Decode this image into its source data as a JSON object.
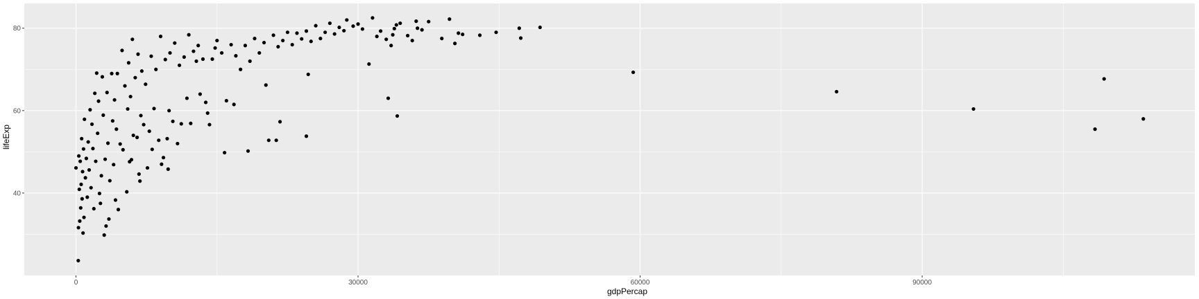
{
  "chart_data": {
    "type": "scatter",
    "xlabel": "gdpPercap",
    "ylabel": "lifeExp",
    "xlim": [
      -5500,
      119000
    ],
    "ylim": [
      20,
      86
    ],
    "x_ticks": [
      0,
      30000,
      60000,
      90000
    ],
    "x_tick_labels": [
      "0",
      "30000",
      "60000",
      "90000"
    ],
    "y_ticks": [
      40,
      60,
      80
    ],
    "y_tick_labels": [
      "40",
      "60",
      "80"
    ],
    "grid": true,
    "panel_background": "#ebebeb",
    "gridline_color": "#ffffff",
    "point_color": "#000000",
    "points": [
      [
        113523,
        58.0
      ],
      [
        109348,
        67.7
      ],
      [
        108382,
        55.5
      ],
      [
        95458,
        60.4
      ],
      [
        80895,
        64.6
      ],
      [
        59265,
        69.3
      ],
      [
        49357,
        80.2
      ],
      [
        47306,
        77.6
      ],
      [
        47143,
        80.0
      ],
      [
        44684,
        79.0
      ],
      [
        42952,
        78.3
      ],
      [
        41120,
        78.5
      ],
      [
        40676,
        78.8
      ],
      [
        40300,
        76.3
      ],
      [
        39724,
        82.2
      ],
      [
        38908,
        77.5
      ],
      [
        37506,
        81.6
      ],
      [
        36798,
        79.6
      ],
      [
        36319,
        80.0
      ],
      [
        36180,
        81.7
      ],
      [
        35767,
        77.0
      ],
      [
        35278,
        78.2
      ],
      [
        34481,
        81.2
      ],
      [
        34167,
        58.7
      ],
      [
        34077,
        80.8
      ],
      [
        33859,
        79.9
      ],
      [
        33692,
        78.4
      ],
      [
        33519,
        75.8
      ],
      [
        33207,
        63.0
      ],
      [
        33000,
        77.3
      ],
      [
        32400,
        79.3
      ],
      [
        32000,
        78.0
      ],
      [
        31540,
        82.5
      ],
      [
        31163,
        71.3
      ],
      [
        30470,
        79.8
      ],
      [
        30000,
        81.0
      ],
      [
        29478,
        80.5
      ],
      [
        28800,
        82.0
      ],
      [
        28500,
        79.4
      ],
      [
        28000,
        80.2
      ],
      [
        27500,
        78.6
      ],
      [
        27000,
        81.2
      ],
      [
        26500,
        79.0
      ],
      [
        26000,
        77.5
      ],
      [
        25500,
        80.6
      ],
      [
        25000,
        76.8
      ],
      [
        24700,
        68.8
      ],
      [
        24500,
        79.3
      ],
      [
        24500,
        53.8
      ],
      [
        24000,
        77.4
      ],
      [
        23500,
        78.8
      ],
      [
        23000,
        76.0
      ],
      [
        22500,
        79.0
      ],
      [
        22000,
        77.0
      ],
      [
        21700,
        57.3
      ],
      [
        21500,
        75.5
      ],
      [
        21300,
        52.8
      ],
      [
        21000,
        78.3
      ],
      [
        20500,
        52.8
      ],
      [
        20200,
        66.2
      ],
      [
        20000,
        76.5
      ],
      [
        19500,
        74.0
      ],
      [
        19000,
        77.5
      ],
      [
        18500,
        72.0
      ],
      [
        18300,
        50.2
      ],
      [
        18000,
        75.8
      ],
      [
        17500,
        70.0
      ],
      [
        17000,
        73.3
      ],
      [
        16800,
        61.5
      ],
      [
        16500,
        76.0
      ],
      [
        16000,
        62.4
      ],
      [
        15800,
        49.8
      ],
      [
        15500,
        74.0
      ],
      [
        15000,
        77.0
      ],
      [
        14800,
        75.2
      ],
      [
        14500,
        72.5
      ],
      [
        14200,
        56.6
      ],
      [
        14000,
        59.4
      ],
      [
        13800,
        62.0
      ],
      [
        13500,
        72.5
      ],
      [
        13200,
        64.0
      ],
      [
        13000,
        75.8
      ],
      [
        12800,
        72.0
      ],
      [
        12500,
        74.4
      ],
      [
        12200,
        56.9
      ],
      [
        12000,
        78.4
      ],
      [
        11800,
        63.0
      ],
      [
        11500,
        73.0
      ],
      [
        11200,
        56.8
      ],
      [
        11000,
        71.0
      ],
      [
        10800,
        52.0
      ],
      [
        10500,
        76.4
      ],
      [
        10300,
        57.4
      ],
      [
        10000,
        74.0
      ],
      [
        9900,
        60.0
      ],
      [
        9800,
        45.8
      ],
      [
        9700,
        53.2
      ],
      [
        9500,
        72.4
      ],
      [
        9300,
        48.6
      ],
      [
        9100,
        47.0
      ],
      [
        9000,
        78.0
      ],
      [
        8800,
        52.8
      ],
      [
        8500,
        70.0
      ],
      [
        8300,
        60.5
      ],
      [
        8100,
        50.6
      ],
      [
        8000,
        73.2
      ],
      [
        7800,
        55.0
      ],
      [
        7600,
        46.1
      ],
      [
        7400,
        66.4
      ],
      [
        7200,
        56.6
      ],
      [
        7000,
        69.6
      ],
      [
        6900,
        58.8
      ],
      [
        6800,
        42.9
      ],
      [
        6700,
        44.6
      ],
      [
        6600,
        73.7
      ],
      [
        6500,
        53.5
      ],
      [
        6300,
        68.0
      ],
      [
        6100,
        54.0
      ],
      [
        6000,
        77.3
      ],
      [
        5900,
        48.1
      ],
      [
        5800,
        63.4
      ],
      [
        5700,
        47.6
      ],
      [
        5600,
        71.6
      ],
      [
        5500,
        60.4
      ],
      [
        5400,
        40.3
      ],
      [
        5200,
        66.0
      ],
      [
        5000,
        50.5
      ],
      [
        4900,
        74.6
      ],
      [
        4700,
        51.9
      ],
      [
        4500,
        36.0
      ],
      [
        4400,
        69.0
      ],
      [
        4300,
        55.5
      ],
      [
        4200,
        38.3
      ],
      [
        4100,
        62.6
      ],
      [
        4000,
        46.9
      ],
      [
        3900,
        57.5
      ],
      [
        3800,
        69.0
      ],
      [
        3600,
        43.0
      ],
      [
        3500,
        33.7
      ],
      [
        3400,
        52.1
      ],
      [
        3300,
        64.4
      ],
      [
        3200,
        32.0
      ],
      [
        3100,
        48.2
      ],
      [
        3000,
        29.8
      ],
      [
        2900,
        58.9
      ],
      [
        2800,
        68.2
      ],
      [
        2700,
        44.2
      ],
      [
        2600,
        37.5
      ],
      [
        2500,
        39.9
      ],
      [
        2400,
        62.3
      ],
      [
        2300,
        54.5
      ],
      [
        2200,
        69.1
      ],
      [
        2100,
        47.7
      ],
      [
        2000,
        64.2
      ],
      [
        1900,
        36.2
      ],
      [
        1800,
        50.8
      ],
      [
        1700,
        56.7
      ],
      [
        1600,
        41.3
      ],
      [
        1500,
        60.2
      ],
      [
        1400,
        45.6
      ],
      [
        1300,
        52.4
      ],
      [
        1200,
        39.0
      ],
      [
        1100,
        48.4
      ],
      [
        1000,
        43.7
      ],
      [
        900,
        57.9
      ],
      [
        850,
        34.1
      ],
      [
        800,
        50.7
      ],
      [
        750,
        30.3
      ],
      [
        700,
        45.2
      ],
      [
        650,
        38.6
      ],
      [
        600,
        53.2
      ],
      [
        550,
        42.1
      ],
      [
        500,
        36.4
      ],
      [
        450,
        47.7
      ],
      [
        400,
        33.2
      ],
      [
        350,
        40.9
      ],
      [
        300,
        49.0
      ],
      [
        260,
        31.6
      ],
      [
        241,
        23.6
      ],
      [
        0,
        46.1
      ]
    ]
  }
}
